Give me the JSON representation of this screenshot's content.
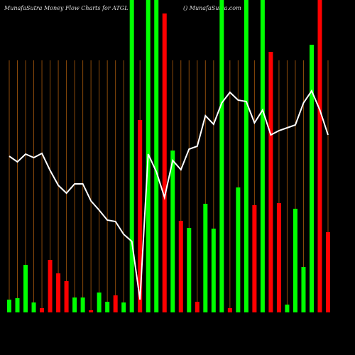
{
  "chart_data": {
    "type": "bar-line",
    "title": "MunafaSutra  Money Flow  Charts for ATGL",
    "subtitle": "() MunafaSutra.com",
    "categories": [
      null,
      null,
      null,
      null,
      null,
      null,
      null,
      null,
      null,
      null,
      null,
      null,
      null,
      null,
      null,
      null,
      null,
      null,
      null,
      null,
      null,
      null,
      null,
      null,
      null,
      null,
      null,
      null,
      null,
      null,
      null,
      null,
      null,
      null,
      null,
      null,
      null,
      null,
      null,
      null
    ],
    "bars": {
      "values": [
        18,
        20,
        67,
        14,
        6,
        74,
        55,
        44,
        21,
        21,
        3,
        28,
        15,
        24,
        14,
        440,
        271,
        440,
        440,
        421,
        228,
        129,
        119,
        15,
        153,
        118,
        440,
        6,
        176,
        440,
        151,
        440,
        367,
        154,
        11,
        146,
        64,
        377,
        440,
        113
      ],
      "colors": [
        "#00ff00",
        "#00ff00",
        "#00ff00",
        "#00ff00",
        "#ff0000",
        "#ff0000",
        "#ff0000",
        "#ff0000",
        "#00ff00",
        "#00ff00",
        "#ff0000",
        "#00ff00",
        "#00ff00",
        "#ff0000",
        "#00ff00",
        "#00ff00",
        "#ff0000",
        "#00ff00",
        "#00ff00",
        "#ff0000",
        "#00ff00",
        "#ff0000",
        "#00ff00",
        "#ff0000",
        "#00ff00",
        "#00ff00",
        "#00ff00",
        "#ff0000",
        "#00ff00",
        "#00ff00",
        "#ff0000",
        "#00ff00",
        "#ff0000",
        "#ff0000",
        "#00ff00",
        "#00ff00",
        "#00ff00",
        "#00ff00",
        "#ff0000",
        "#ff0000"
      ]
    },
    "line": {
      "color": "#ffffff",
      "values": [
        220,
        212,
        223,
        218,
        224,
        200,
        179,
        168,
        181,
        181,
        157,
        144,
        130,
        128,
        110,
        100,
        18,
        223,
        198,
        162,
        214,
        201,
        230,
        234,
        277,
        265,
        295,
        310,
        299,
        297,
        267,
        285,
        250,
        256,
        260,
        264,
        295,
        312,
        285,
        250
      ]
    },
    "ylim": [
      0,
      440
    ],
    "grid": true,
    "grid_color": "#8b4a0a"
  }
}
